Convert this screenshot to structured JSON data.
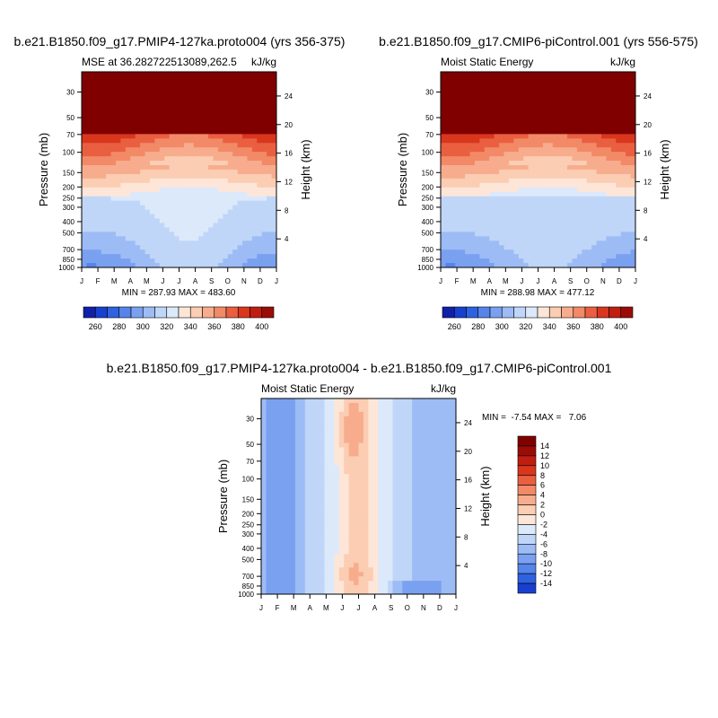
{
  "month_labels": [
    "J",
    "F",
    "M",
    "A",
    "M",
    "J",
    "J",
    "A",
    "S",
    "O",
    "N",
    "D",
    "J"
  ],
  "pressure_ticks": [
    30,
    50,
    70,
    100,
    150,
    200,
    250,
    300,
    400,
    500,
    700,
    850,
    1000
  ],
  "pressure_tick_labels": [
    "30",
    "50",
    "70",
    "100",
    "150",
    "200",
    "250",
    "300",
    "400",
    "500",
    "700",
    "850",
    "1000"
  ],
  "height_ticks": [
    24,
    20,
    16,
    12,
    8,
    4
  ],
  "height_tick_labels": [
    "24",
    "20",
    "16",
    "12",
    "8",
    "4"
  ],
  "palette": [
    "#0a0a7f",
    "#1020a8",
    "#1840d0",
    "#2f62e0",
    "#5684ea",
    "#7aa1f0",
    "#9dbcf5",
    "#bfd6f8",
    "#dce9fb",
    "#fde6d7",
    "#fbcdb3",
    "#f7ad8d",
    "#f28967",
    "#e95f40",
    "#d9361e",
    "#c01e10",
    "#9c0c06",
    "#800000"
  ],
  "chart_data": [
    {
      "type": "heatmap",
      "panel": "top-left",
      "title": "b.e21.B1850.f09_g17.PMIP4-127ka.proto004 (yrs 356-375)",
      "left_string": "MSE at 36.282722513089,262.5",
      "right_string": "kJ/kg",
      "xlabel": "",
      "ylabel": "Pressure (mb)",
      "ylabel_right": "Height (km)",
      "x_categories": [
        "J",
        "F",
        "M",
        "A",
        "M",
        "J",
        "J",
        "A",
        "S",
        "O",
        "N",
        "D",
        "J"
      ],
      "ylim_mb": [
        1000,
        20
      ],
      "min": 287.93,
      "max": 483.6,
      "min_max_text": "MIN = 287.93 MAX = 483.60",
      "colorbar_levels": [
        260,
        270,
        280,
        290,
        300,
        310,
        320,
        330,
        340,
        350,
        360,
        370,
        380,
        390,
        400
      ],
      "colorbar_label_values": [
        260,
        280,
        300,
        320,
        340,
        360,
        380,
        400
      ],
      "colorbar_labels": [
        "260",
        "280",
        "300",
        "320",
        "340",
        "360",
        "380",
        "400"
      ]
    },
    {
      "type": "heatmap",
      "panel": "top-right",
      "title": "b.e21.B1850.f09_g17.CMIP6-piControl.001 (yrs 556-575)",
      "left_string": "Moist Static Energy",
      "right_string": "kJ/kg",
      "xlabel": "",
      "ylabel": "Pressure (mb)",
      "ylabel_right": "Height (km)",
      "x_categories": [
        "J",
        "F",
        "M",
        "A",
        "M",
        "J",
        "J",
        "A",
        "S",
        "O",
        "N",
        "D",
        "J"
      ],
      "ylim_mb": [
        1000,
        20
      ],
      "min": 288.98,
      "max": 477.12,
      "min_max_text": "MIN = 288.98 MAX = 477.12",
      "colorbar_levels": [
        260,
        270,
        280,
        290,
        300,
        310,
        320,
        330,
        340,
        350,
        360,
        370,
        380,
        390,
        400
      ],
      "colorbar_label_values": [
        260,
        280,
        300,
        320,
        340,
        360,
        380,
        400
      ],
      "colorbar_labels": [
        "260",
        "280",
        "300",
        "320",
        "340",
        "360",
        "380",
        "400"
      ]
    },
    {
      "type": "heatmap",
      "panel": "bottom-difference",
      "title": "b.e21.B1850.f09_g17.PMIP4-127ka.proto004 - b.e21.B1850.f09_g17.CMIP6-piControl.001",
      "left_string": "Moist Static Energy",
      "right_string": "kJ/kg",
      "xlabel": "",
      "ylabel": "Pressure (mb)",
      "ylabel_right": "Height (km)",
      "x_categories": [
        "J",
        "F",
        "M",
        "A",
        "M",
        "J",
        "J",
        "A",
        "S",
        "O",
        "N",
        "D",
        "J"
      ],
      "ylim_mb": [
        1000,
        20
      ],
      "min": -7.54,
      "max": 7.06,
      "min_max_text": "MIN =  -7.54 MAX =   7.06",
      "colorbar_levels": [
        -14,
        -12,
        -10,
        -8,
        -6,
        -4,
        -2,
        0,
        2,
        4,
        6,
        8,
        10,
        12,
        14
      ],
      "colorbar_labels": [
        "14",
        "12",
        "10",
        "8",
        "6",
        "4",
        "2",
        "0",
        "-2",
        "-4",
        "-6",
        "-8",
        "-10",
        "-12",
        "-14"
      ]
    }
  ]
}
